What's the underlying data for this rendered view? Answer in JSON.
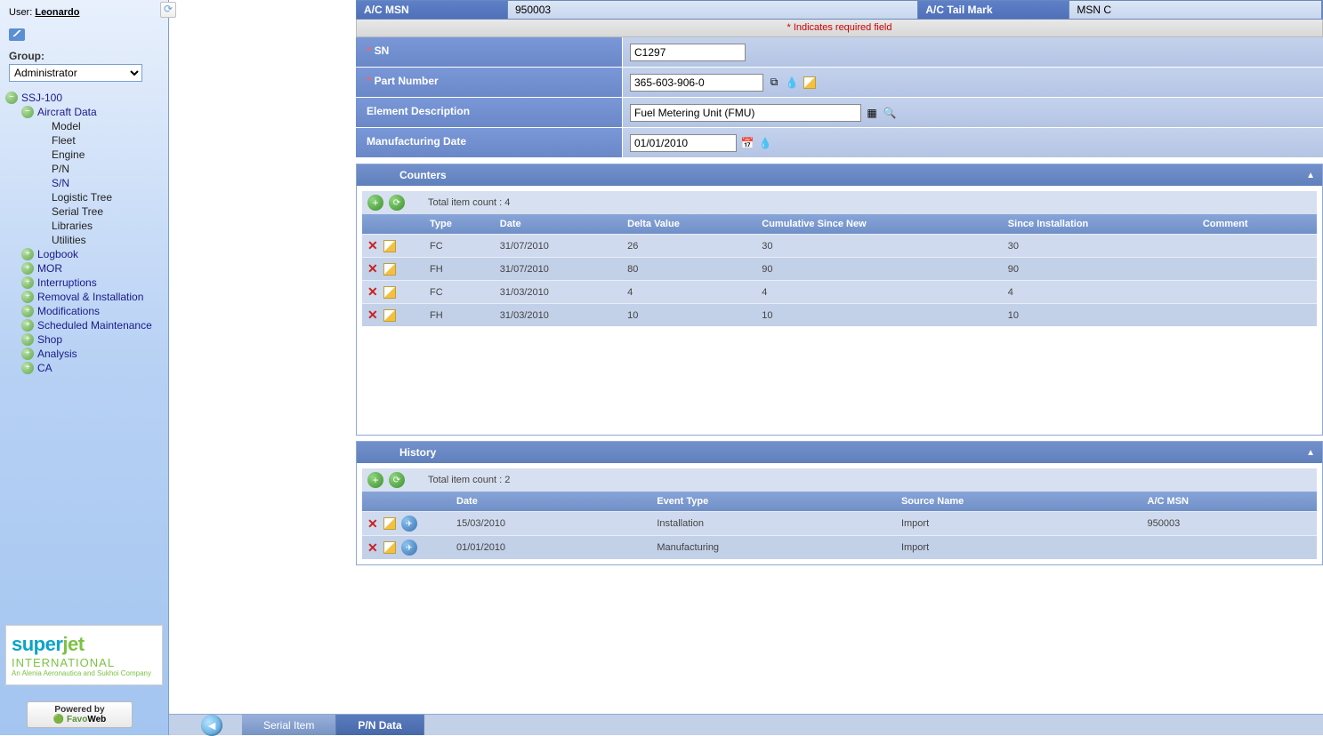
{
  "user": {
    "prefix": "User:",
    "name": "Leonardo"
  },
  "group": {
    "label": "Group:",
    "selected": "Administrator"
  },
  "tree": {
    "root": "SSJ-100",
    "section1": {
      "label": "Aircraft Data",
      "items": [
        "Model",
        "Fleet",
        "Engine",
        "P/N",
        "S/N",
        "Logistic Tree",
        "Serial Tree",
        "Libraries",
        "Utilities"
      ],
      "active_index": 4
    },
    "others": [
      "Logbook",
      "MOR",
      "Interruptions",
      "Removal & Installation",
      "Modifications",
      "Scheduled Maintenance",
      "Shop",
      "Analysis",
      "CA"
    ]
  },
  "logo": {
    "line1a": "super",
    "line1b": "jet",
    "line2": "INTERNATIONAL",
    "line3": "An Alenia Aeronautica and Sukhoi Company"
  },
  "powered": {
    "line1": "Powered by",
    "line2a": "Favo",
    "line2b": "Web"
  },
  "topbar": {
    "msn_label": "A/C MSN",
    "msn_value": "950003",
    "tail_label": "A/C Tail Mark",
    "tail_value": "MSN C"
  },
  "required_text": "*  Indicates required field",
  "form": {
    "sn": {
      "label": "SN",
      "value": "C1297",
      "required": true
    },
    "pn": {
      "label": "Part Number",
      "value": "365-603-906-0",
      "required": true
    },
    "desc": {
      "label": "Element Description",
      "value": "Fuel Metering Unit (FMU)",
      "required": false
    },
    "mdate": {
      "label": "Manufacturing Date",
      "value": "01/01/2010",
      "required": false
    }
  },
  "counters": {
    "title": "Counters",
    "count_label": "Total item count : 4",
    "columns": [
      "Type",
      "Date",
      "Delta Value",
      "Cumulative Since New",
      "Since Installation",
      "Comment"
    ],
    "rows": [
      {
        "type": "FC",
        "date": "31/07/2010",
        "delta": "26",
        "csn": "30",
        "si": "30",
        "comment": ""
      },
      {
        "type": "FH",
        "date": "31/07/2010",
        "delta": "80",
        "csn": "90",
        "si": "90",
        "comment": ""
      },
      {
        "type": "FC",
        "date": "31/03/2010",
        "delta": "4",
        "csn": "4",
        "si": "4",
        "comment": ""
      },
      {
        "type": "FH",
        "date": "31/03/2010",
        "delta": "10",
        "csn": "10",
        "si": "10",
        "comment": ""
      }
    ]
  },
  "history": {
    "title": "History",
    "count_label": "Total item count : 2",
    "columns": [
      "Date",
      "Event Type",
      "Source Name",
      "A/C MSN"
    ],
    "rows": [
      {
        "date": "15/03/2010",
        "event": "Installation",
        "source": "Import",
        "msn": "950003"
      },
      {
        "date": "01/01/2010",
        "event": "Manufacturing",
        "source": "Import",
        "msn": ""
      }
    ]
  },
  "footer": {
    "tab1": "Serial Item",
    "tab2": "P/N Data"
  },
  "colors": {
    "sidebar_grad_top": "#e8f0fc",
    "sidebar_grad_bot": "#a3c5f0",
    "header_blue": "#6080bc",
    "row_blue_1": "#cfdaee",
    "row_blue_2": "#c2d0e8",
    "label_blue": "#6a88c8",
    "value_blue": "#b4c4e4",
    "green_ball": "#5fa84a",
    "red_x": "#cc2020",
    "required_red": "#cc0000"
  }
}
